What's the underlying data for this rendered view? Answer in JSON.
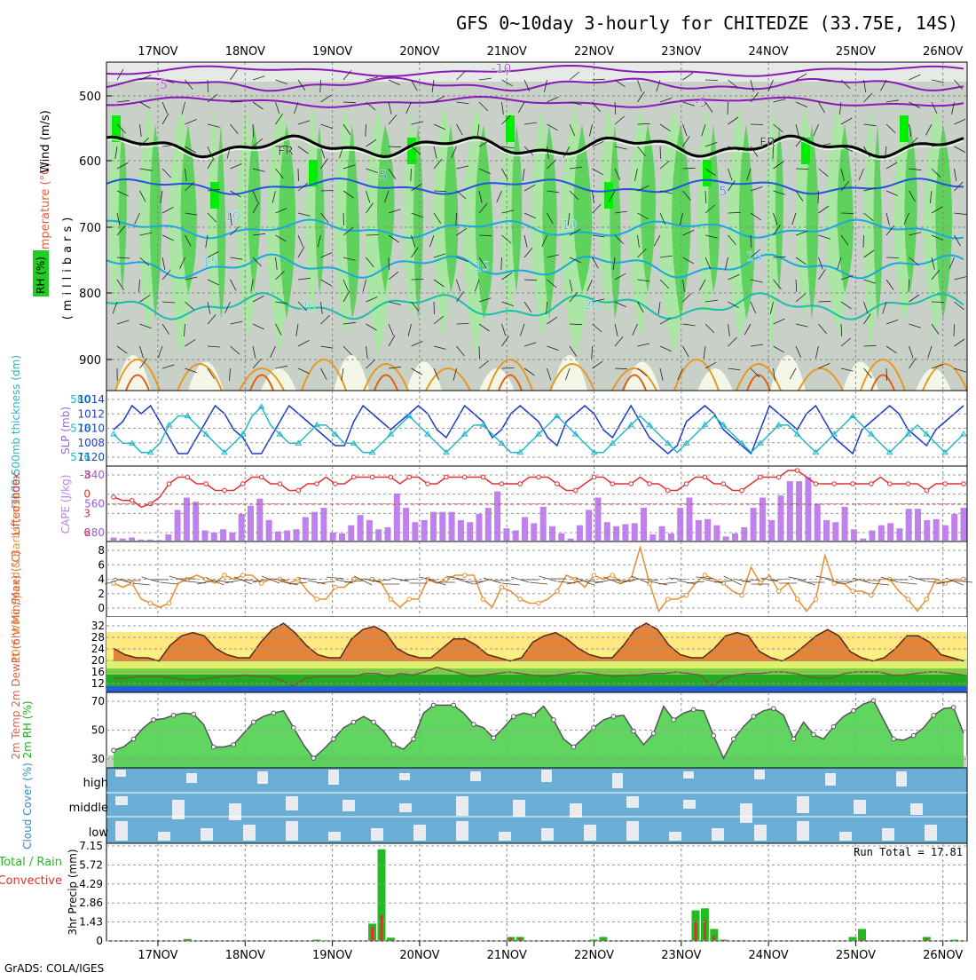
{
  "title": "GFS 0~10day 3-hourly for CHITEDZE (33.75E, 14S)",
  "credit": "GrADS: COLA/IGES",
  "day_labels": [
    "17NOV",
    "18NOV",
    "19NOV",
    "20NOV",
    "21NOV",
    "22NOV",
    "23NOV",
    "24NOV",
    "25NOV",
    "26NOV"
  ],
  "colors": {
    "rh_green": "#22cc22",
    "rh_light": "#a8e8a0",
    "rh_gray": "#c8d0c8",
    "temp_purple": "#8a1ab8",
    "temp_blue": "#2255dd",
    "temp_cyan": "#1aa8dd",
    "temp_teal": "#18c0a8",
    "temp_orange": "#e89820",
    "freeze": "#000000",
    "slp": "#1a3ccc",
    "thick": "#20b8c8",
    "cape": "#c080f0",
    "li": "#e03030",
    "wind": "#e89030",
    "cloud": "#6aaed6",
    "cloud_gap": "#e8ecf0",
    "precip_total": "#22bb22",
    "precip_conv": "#e03030"
  },
  "panels": {
    "upper": {
      "ylabel_rh": "RH (%)",
      "ylabel_unit": "(millibars)",
      "ylabel_temp": "Temperature (°C)",
      "ylabel_wind": "Wind (m/s)",
      "y_ticks": [
        "500",
        "600",
        "700",
        "800",
        "900"
      ],
      "contour_labels": [
        "-10",
        "-5",
        "-5",
        "FR",
        "FR",
        "5",
        "5",
        "10",
        "10",
        "15",
        "15",
        "15",
        "20",
        "20"
      ]
    },
    "slp_thick": {
      "ylabel_left": "1000-500mb thickness (dm)",
      "ylabel_right": "SLP (mb)",
      "left_ticks": [
        "580",
        "578",
        "576"
      ],
      "right_ticks": [
        "1014",
        "1012",
        "1010",
        "1008",
        "1120"
      ]
    },
    "cape_li": {
      "ylabel_left": "Lifted Index",
      "ylabel_right": "CAPE (J/kg)",
      "left_ticks": [
        "-3",
        "0",
        "3",
        "6"
      ],
      "right_ticks": [
        "840",
        "560",
        "280"
      ]
    },
    "wind10m": {
      "ylabel": "10m Wind Speed & Barbs (m/s)",
      "y_ticks": [
        "8",
        "6",
        "4",
        "2",
        "0"
      ]
    },
    "temp2m": {
      "ylabel": "2m Temp 2m DewPt (6hr Min/Max) (°C)",
      "y_ticks": [
        "32",
        "28",
        "24",
        "20",
        "16",
        "12"
      ]
    },
    "rh2m": {
      "ylabel": "2m RH (%)",
      "y_ticks": [
        "70",
        "50",
        "30"
      ]
    },
    "cloud": {
      "ylabel": "Cloud Cover (%)",
      "levels": [
        "high",
        "middle",
        "low"
      ]
    },
    "precip": {
      "ylabel_left": "Total / Rain",
      "ylabel_left2": "Convective",
      "ylabel_unit": "3hr Precip (mm)",
      "y_ticks": [
        "7.15",
        "5.72",
        "4.29",
        "2.86",
        "1.43",
        "0"
      ],
      "run_total_label": "Run Total = 17.81"
    }
  },
  "chart_data": [
    {
      "type": "line",
      "title": "SLP / 1000-500mb thickness",
      "series": [
        {
          "name": "SLP (mb)",
          "values": [
            1011,
            1012,
            1014,
            1013,
            1014,
            1012,
            1010,
            1008,
            1008,
            1010,
            1012,
            1014,
            1013,
            1011,
            1010,
            1008,
            1008,
            1010,
            1012,
            1014,
            1013,
            1012,
            1011,
            1010,
            1009,
            1009,
            1012,
            1014,
            1013,
            1012,
            1011,
            1012,
            1013,
            1014,
            1013,
            1011,
            1010,
            1012,
            1014,
            1013,
            1012,
            1010,
            1011,
            1013,
            1014,
            1013,
            1012,
            1010,
            1009,
            1012,
            1013,
            1014,
            1013,
            1011,
            1010,
            1012,
            1014,
            1012,
            1010,
            1009,
            1008,
            1009,
            1012,
            1013,
            1014,
            1013,
            1011,
            1010,
            1009,
            1008,
            1011,
            1014,
            1013,
            1012,
            1011,
            1013,
            1014,
            1012,
            1010,
            1009,
            1008,
            1011,
            1012,
            1013,
            1014,
            1013,
            1011,
            1010,
            1009,
            1011,
            1012,
            1013,
            1014
          ]
        },
        {
          "name": "1000-500mb thickness (dm)",
          "values": [
            578,
            577,
            577,
            576,
            576,
            577,
            579,
            580,
            580,
            579,
            578,
            577,
            576,
            577,
            578,
            580,
            581,
            579,
            578,
            577,
            577,
            578,
            579,
            579,
            578,
            577,
            577,
            576,
            576,
            577,
            578,
            579,
            580,
            579,
            578,
            577,
            576,
            577,
            578,
            579,
            579,
            578,
            577,
            576,
            576,
            577,
            578,
            579,
            580,
            579,
            578,
            577,
            576,
            576,
            577,
            578,
            579,
            580,
            579,
            578,
            577,
            576,
            577,
            578,
            579,
            580,
            579,
            578,
            577,
            576,
            577,
            578,
            579,
            579,
            578,
            577,
            576,
            577,
            578,
            579,
            580,
            579,
            578,
            577,
            576,
            577,
            578,
            579,
            578,
            577,
            576,
            577,
            578
          ]
        }
      ]
    },
    {
      "type": "bar",
      "title": "CAPE (J/kg) / Lifted Index",
      "series": [
        {
          "name": "CAPE (J/kg)",
          "values": [
            30,
            20,
            30,
            10,
            10,
            5,
            60,
            300,
            420,
            380,
            100,
            80,
            110,
            80,
            260,
            340,
            410,
            200,
            90,
            100,
            110,
            230,
            280,
            320,
            80,
            70,
            150,
            250,
            200,
            110,
            130,
            460,
            320,
            180,
            200,
            280,
            280,
            280,
            200,
            180,
            260,
            320,
            480,
            120,
            100,
            230,
            170,
            330,
            140,
            70,
            20,
            150,
            300,
            420,
            180,
            140,
            160,
            170,
            320,
            60,
            140,
            70,
            320,
            420,
            200,
            210,
            150,
            40,
            70,
            130,
            320,
            420,
            200,
            440,
            580,
            580,
            620,
            360,
            200,
            180,
            330,
            110,
            20,
            100,
            150,
            170,
            120,
            310,
            310,
            200,
            210,
            150,
            260,
            320
          ]
        },
        {
          "name": "Lifted Index",
          "values": [
            0,
            0.5,
            0.5,
            1.5,
            1,
            0,
            -2,
            -3,
            -3,
            -2,
            -2,
            -1,
            -1,
            -1,
            -2,
            -3,
            -3,
            -2,
            -2,
            -1,
            -1,
            -2,
            -2,
            -3,
            -2,
            -2,
            -3,
            -3,
            -3,
            -3,
            -3,
            -2,
            -3,
            -3,
            -2,
            -2,
            -3,
            -3,
            -3,
            -3,
            -3,
            -2,
            -2,
            -2,
            -2,
            -3,
            -3,
            -3,
            -2,
            -1,
            -1,
            -2,
            -3,
            -3,
            -2,
            -2,
            -2,
            -3,
            -2,
            -2,
            -1,
            -1,
            -2,
            -3,
            -3,
            -2,
            -2,
            -1,
            -1,
            -2,
            -3,
            -3,
            -3,
            -4,
            -4,
            -3,
            -2,
            -2,
            -2,
            -2,
            -2,
            -2,
            -2,
            -3,
            -2,
            -2,
            -2,
            -2,
            -1,
            -2,
            -2,
            -2,
            -2
          ]
        }
      ]
    },
    {
      "type": "line",
      "title": "10m Wind Speed (m/s)",
      "series": [
        {
          "name": "10m Wind Speed",
          "values": [
            4.0,
            3.5,
            4.0,
            2,
            1.5,
            1,
            1.5,
            4,
            4.5,
            5,
            4.5,
            4,
            5,
            4.5,
            5,
            5,
            4,
            4.5,
            4.5,
            4,
            4.5,
            3,
            2,
            2,
            3.5,
            3.5,
            4.5,
            4.5,
            4.5,
            4,
            2,
            1,
            2,
            2,
            4.5,
            4,
            4.5,
            5,
            5,
            5,
            2,
            1,
            3.5,
            3,
            2,
            1.5,
            1.5,
            2,
            3,
            5,
            4.5,
            3.5,
            5,
            4.5,
            5,
            4,
            4.5,
            8.5,
            4,
            0.5,
            2,
            2,
            2.5,
            4,
            5,
            4.5,
            4,
            3,
            2.5,
            6,
            4,
            5,
            3,
            4,
            2,
            0.5,
            2,
            7.5,
            4,
            4,
            3,
            3,
            2.5,
            4.5,
            4.5,
            3,
            2,
            0.5,
            2,
            4.5,
            4,
            4.5,
            4.5
          ]
        }
      ]
    },
    {
      "type": "area",
      "title": "2m Temp / 2m DewPt (°C)",
      "series": [
        {
          "name": "2m Temp",
          "values": [
            24,
            22,
            21,
            21,
            20,
            25,
            28,
            29,
            28,
            24,
            22,
            21,
            21,
            26,
            30,
            32,
            29,
            25,
            22,
            21,
            21,
            27,
            30,
            31,
            29,
            24,
            22,
            21,
            21,
            24,
            27,
            27,
            25,
            22,
            21,
            20,
            21,
            26,
            28,
            29,
            27,
            24,
            22,
            21,
            21,
            25,
            30,
            32,
            30,
            25,
            22,
            21,
            21,
            24,
            28,
            29,
            28,
            23,
            21,
            20,
            22,
            25,
            28,
            30,
            28,
            23,
            21,
            20,
            21,
            24,
            28,
            28,
            26,
            22,
            21,
            20
          ]
        },
        {
          "name": "2m DewPt",
          "values": [
            14.5,
            14.5,
            15,
            15,
            15,
            14.5,
            14,
            14,
            14.5,
            15,
            15,
            15.5,
            15,
            15,
            14,
            12,
            14.5,
            15,
            15,
            15,
            15,
            16,
            16,
            15,
            16,
            15.5,
            16.5,
            18,
            17,
            16,
            15,
            15.5,
            16,
            16.5,
            16,
            15.5,
            15,
            15.5,
            16,
            16.5,
            16,
            15.5,
            15,
            15.5,
            15.5,
            16,
            16,
            16.5,
            16,
            15.5,
            12,
            14.5,
            15.5,
            16,
            16,
            16.5,
            16.5,
            16,
            15,
            14.5,
            14.5,
            16,
            16.5,
            16.5,
            16.5,
            15.5,
            15.5,
            16,
            16.5,
            16.5,
            16,
            15.5
          ]
        }
      ]
    },
    {
      "type": "area",
      "title": "2m RH (%)",
      "series": [
        {
          "name": "2m RH",
          "values": [
            35,
            38,
            45,
            55,
            62,
            63,
            66,
            68,
            67,
            58,
            38,
            38,
            40,
            50,
            60,
            65,
            68,
            70,
            55,
            40,
            28,
            36,
            45,
            55,
            60,
            65,
            60,
            52,
            40,
            36,
            45,
            68,
            75,
            75,
            75,
            68,
            58,
            55,
            46,
            55,
            65,
            68,
            66,
            74,
            62,
            45,
            38,
            46,
            55,
            62,
            65,
            66,
            52,
            40,
            50,
            74,
            62,
            68,
            71,
            70,
            48,
            28,
            45,
            56,
            65,
            70,
            72,
            66,
            45,
            60,
            49,
            45,
            56,
            65,
            70,
            76,
            79,
            62,
            45,
            44,
            48,
            55,
            66,
            72,
            73,
            50
          ]
        }
      ]
    },
    {
      "type": "bar",
      "title": "3hr Precip (mm)",
      "series": [
        {
          "name": "Total",
          "values": [
            0,
            0,
            0,
            0,
            0,
            0,
            0,
            0,
            0.15,
            0,
            0,
            0,
            0,
            0,
            0,
            0,
            0,
            0,
            0,
            0,
            0,
            0,
            0.1,
            0.05,
            0,
            0,
            0,
            0,
            1.3,
            6.9,
            0.25,
            0,
            0,
            0,
            0,
            0,
            0,
            0,
            0.05,
            0.05,
            0.03,
            0,
            0,
            0.3,
            0.3,
            0.05,
            0,
            0,
            0,
            0,
            0,
            0,
            0.1,
            0.3,
            0,
            0,
            0,
            0,
            0.05,
            0,
            0,
            0,
            0,
            2.3,
            2.45,
            0.9,
            0.1,
            0,
            0,
            0,
            0,
            0,
            0,
            0,
            0,
            0,
            0,
            0,
            0,
            0,
            0.3,
            0.9,
            0.05,
            0,
            0,
            0,
            0.02,
            0,
            0.3,
            0,
            0,
            0.1,
            0
          ]
        },
        {
          "name": "Convective",
          "values": [
            0,
            0,
            0,
            0,
            0,
            0,
            0,
            0,
            0.1,
            0,
            0,
            0,
            0,
            0,
            0,
            0,
            0,
            0,
            0,
            0,
            0,
            0,
            0.05,
            0,
            0,
            0,
            0,
            0,
            1.05,
            1.95,
            0.1,
            0,
            0,
            0,
            0,
            0,
            0,
            0,
            0.02,
            0,
            0,
            0,
            0,
            0.25,
            0.25,
            0,
            0,
            0,
            0,
            0,
            0,
            0,
            0,
            0.1,
            0,
            0,
            0,
            0,
            0,
            0,
            0,
            0,
            0,
            1.45,
            1.6,
            0.4,
            0.05,
            0,
            0,
            0,
            0,
            0,
            0,
            0,
            0,
            0,
            0,
            0,
            0,
            0,
            0.05,
            0.1,
            0,
            0,
            0,
            0,
            0,
            0,
            0.2,
            0,
            0,
            0,
            0
          ]
        }
      ],
      "ylim": [
        0,
        7.15
      ]
    }
  ]
}
